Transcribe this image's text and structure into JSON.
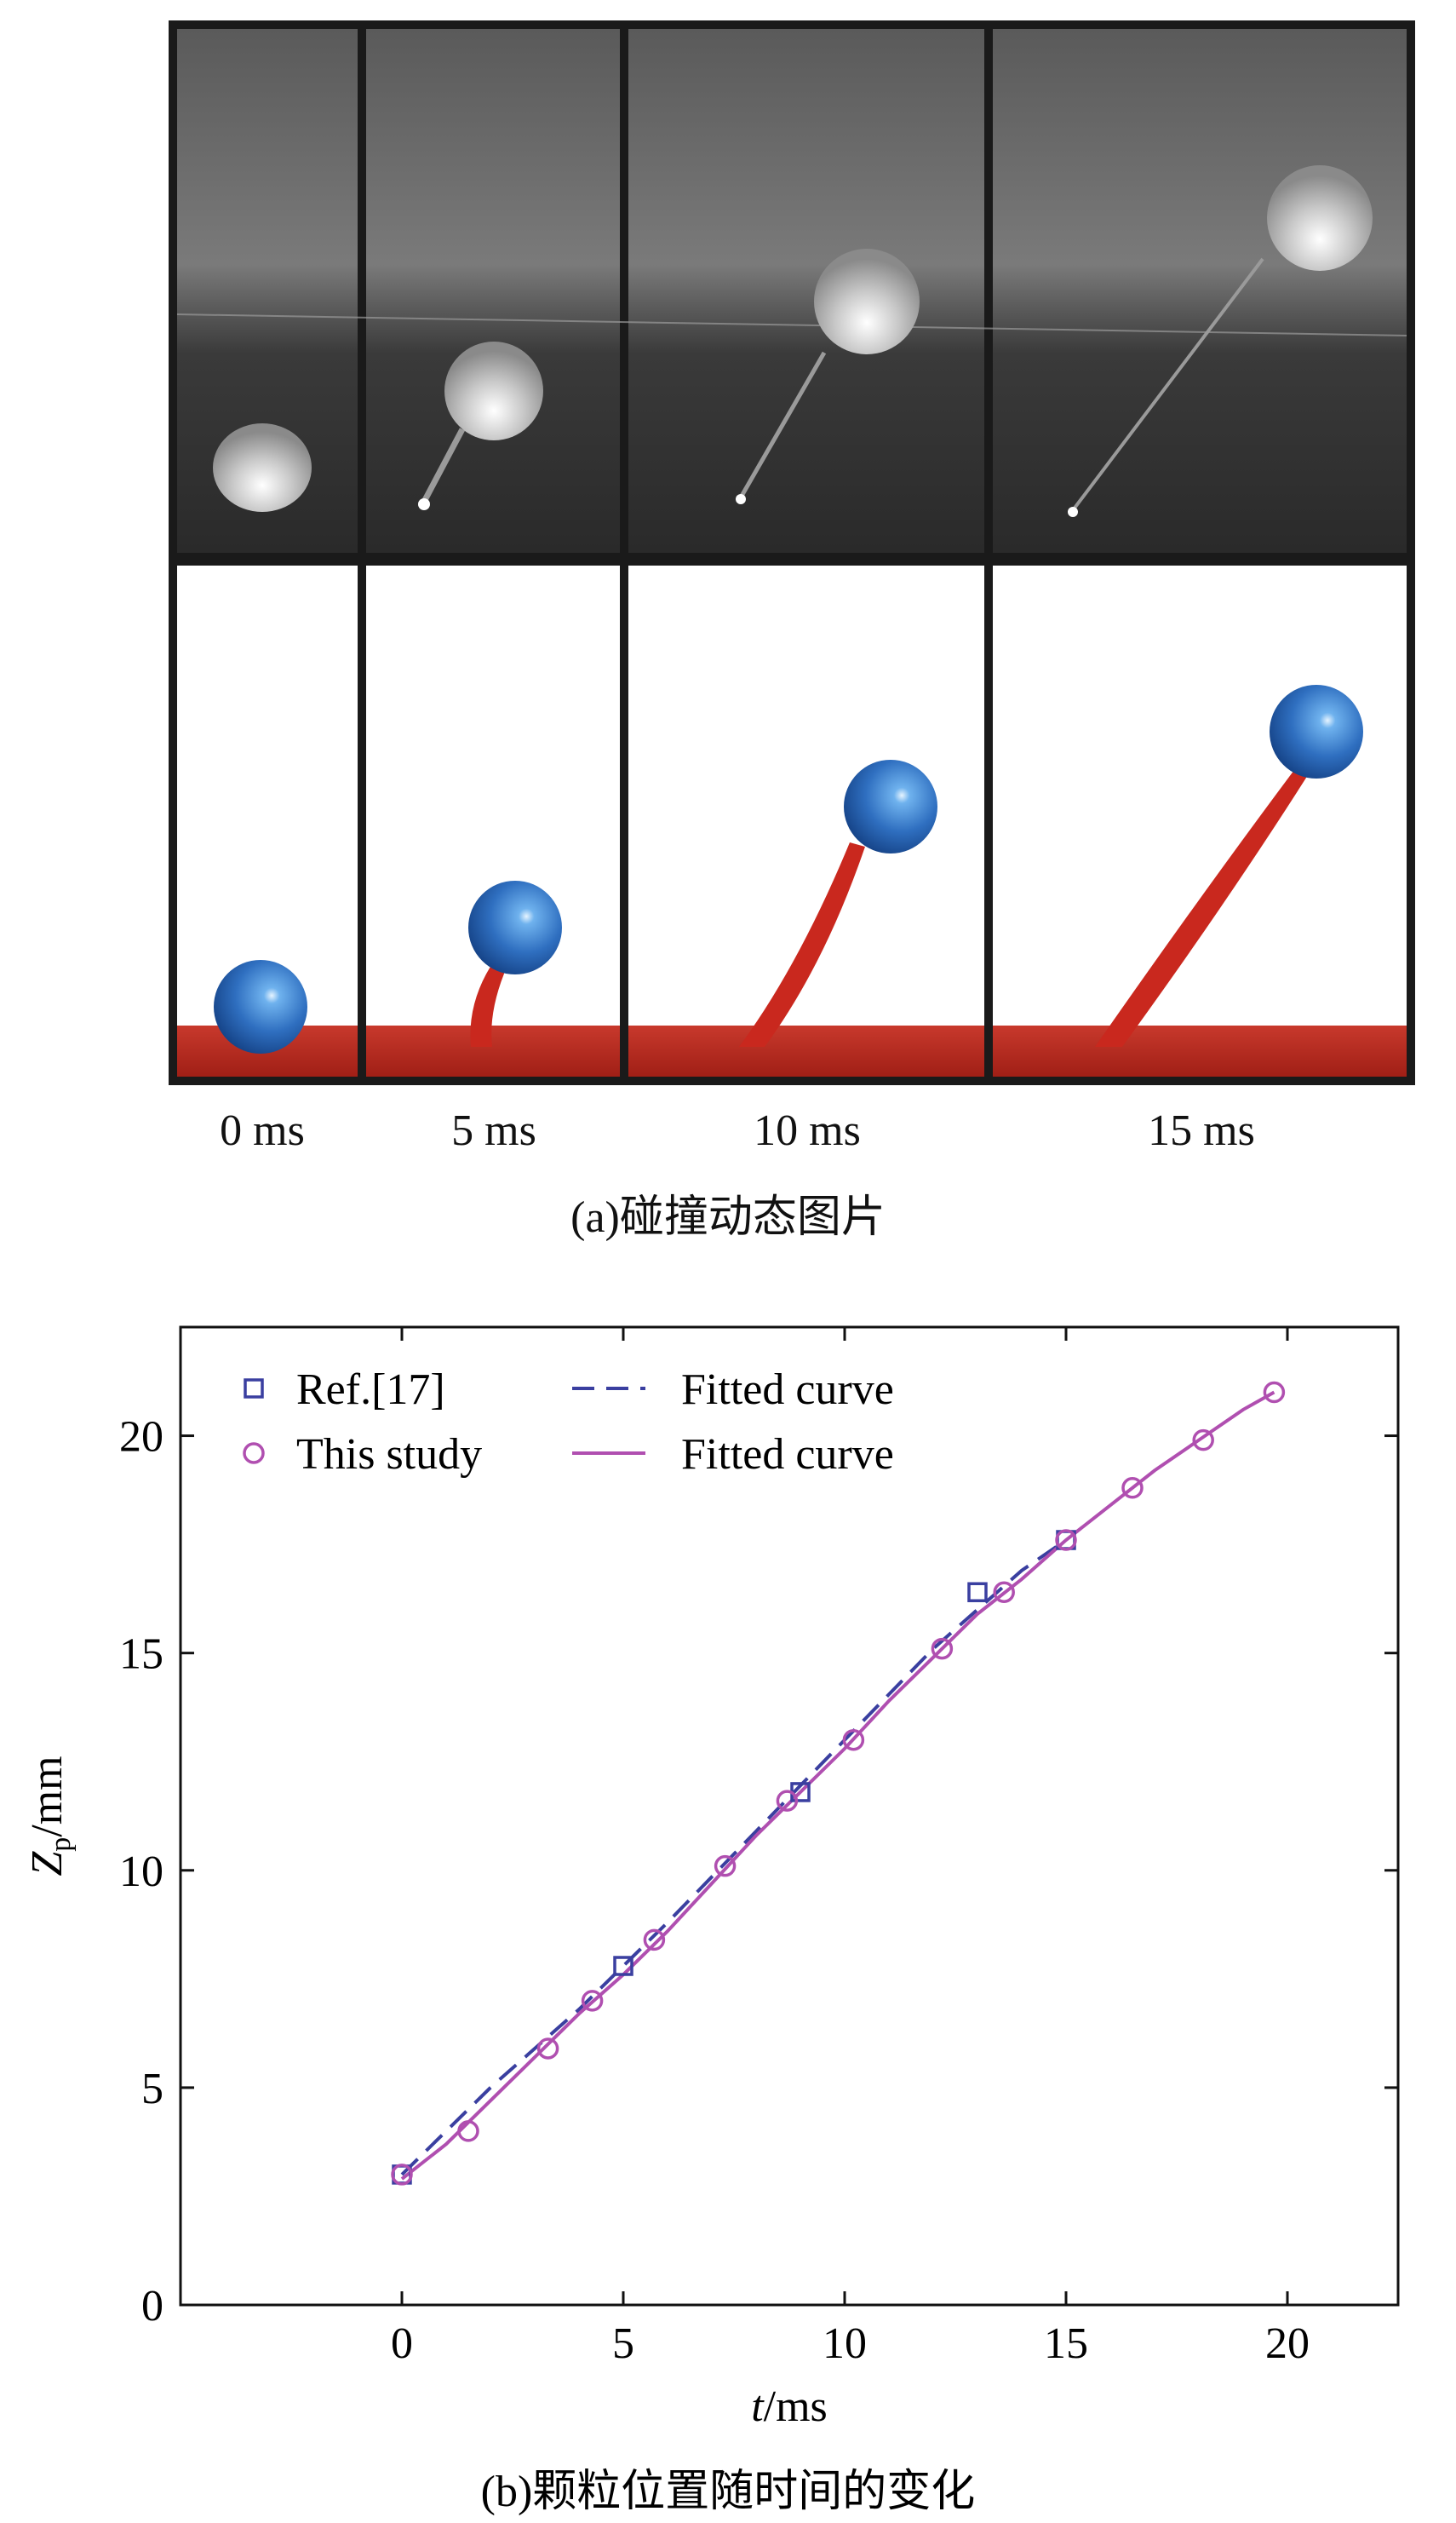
{
  "panel_a": {
    "caption": "(a)碰撞动态图片",
    "frames": [
      {
        "label": "0 ms"
      },
      {
        "label": "5 ms"
      },
      {
        "label": "10 ms"
      },
      {
        "label": "15 ms"
      }
    ]
  },
  "panel_b": {
    "caption": "(b)颗粒位置随时间的变化"
  },
  "chart_data": {
    "type": "scatter",
    "xlabel_italic": "t",
    "xlabel_rest": "/ms",
    "ylabel_main": "Z",
    "ylabel_sub": "p",
    "ylabel_rest": "/mm",
    "xlim": [
      -5,
      22.5
    ],
    "ylim": [
      0,
      22.5
    ],
    "xticks": [
      0,
      5,
      10,
      15,
      20
    ],
    "yticks": [
      0,
      5,
      10,
      15,
      20
    ],
    "legend_position": "top-left",
    "colors": {
      "ref": "#3a3fa0",
      "study": "#b04fb0"
    },
    "series": [
      {
        "name": "Ref.[17]",
        "marker": "square",
        "x": [
          0,
          5,
          9,
          13,
          15
        ],
        "y": [
          3.0,
          7.8,
          11.8,
          16.4,
          17.6
        ]
      },
      {
        "name": "This study",
        "marker": "circle",
        "x": [
          0,
          1.5,
          3.3,
          4.3,
          5.7,
          7.3,
          8.7,
          10.2,
          12.2,
          13.6,
          15.0,
          16.5,
          18.1,
          19.7
        ],
        "y": [
          3.0,
          4.0,
          5.9,
          7.0,
          8.4,
          10.1,
          11.6,
          13.0,
          15.1,
          16.4,
          17.6,
          18.8,
          19.9,
          21.0
        ]
      },
      {
        "name": "Fitted curve",
        "style": "dashed",
        "x": [
          0,
          2,
          4,
          6,
          8,
          10,
          12,
          14,
          15
        ],
        "y": [
          3.0,
          5.0,
          6.8,
          8.8,
          10.9,
          13.0,
          15.1,
          16.9,
          17.6
        ]
      },
      {
        "name": "Fitted curve",
        "style": "solid",
        "x": [
          0,
          1,
          2,
          3,
          4,
          5,
          6,
          7,
          8,
          9,
          10,
          11,
          12,
          13,
          14,
          15,
          16,
          17,
          18,
          19,
          19.7
        ],
        "y": [
          2.9,
          3.7,
          4.7,
          5.7,
          6.7,
          7.6,
          8.6,
          9.7,
          10.8,
          11.8,
          12.8,
          13.9,
          14.9,
          15.9,
          16.7,
          17.6,
          18.4,
          19.2,
          19.9,
          20.6,
          21.0
        ]
      }
    ]
  }
}
